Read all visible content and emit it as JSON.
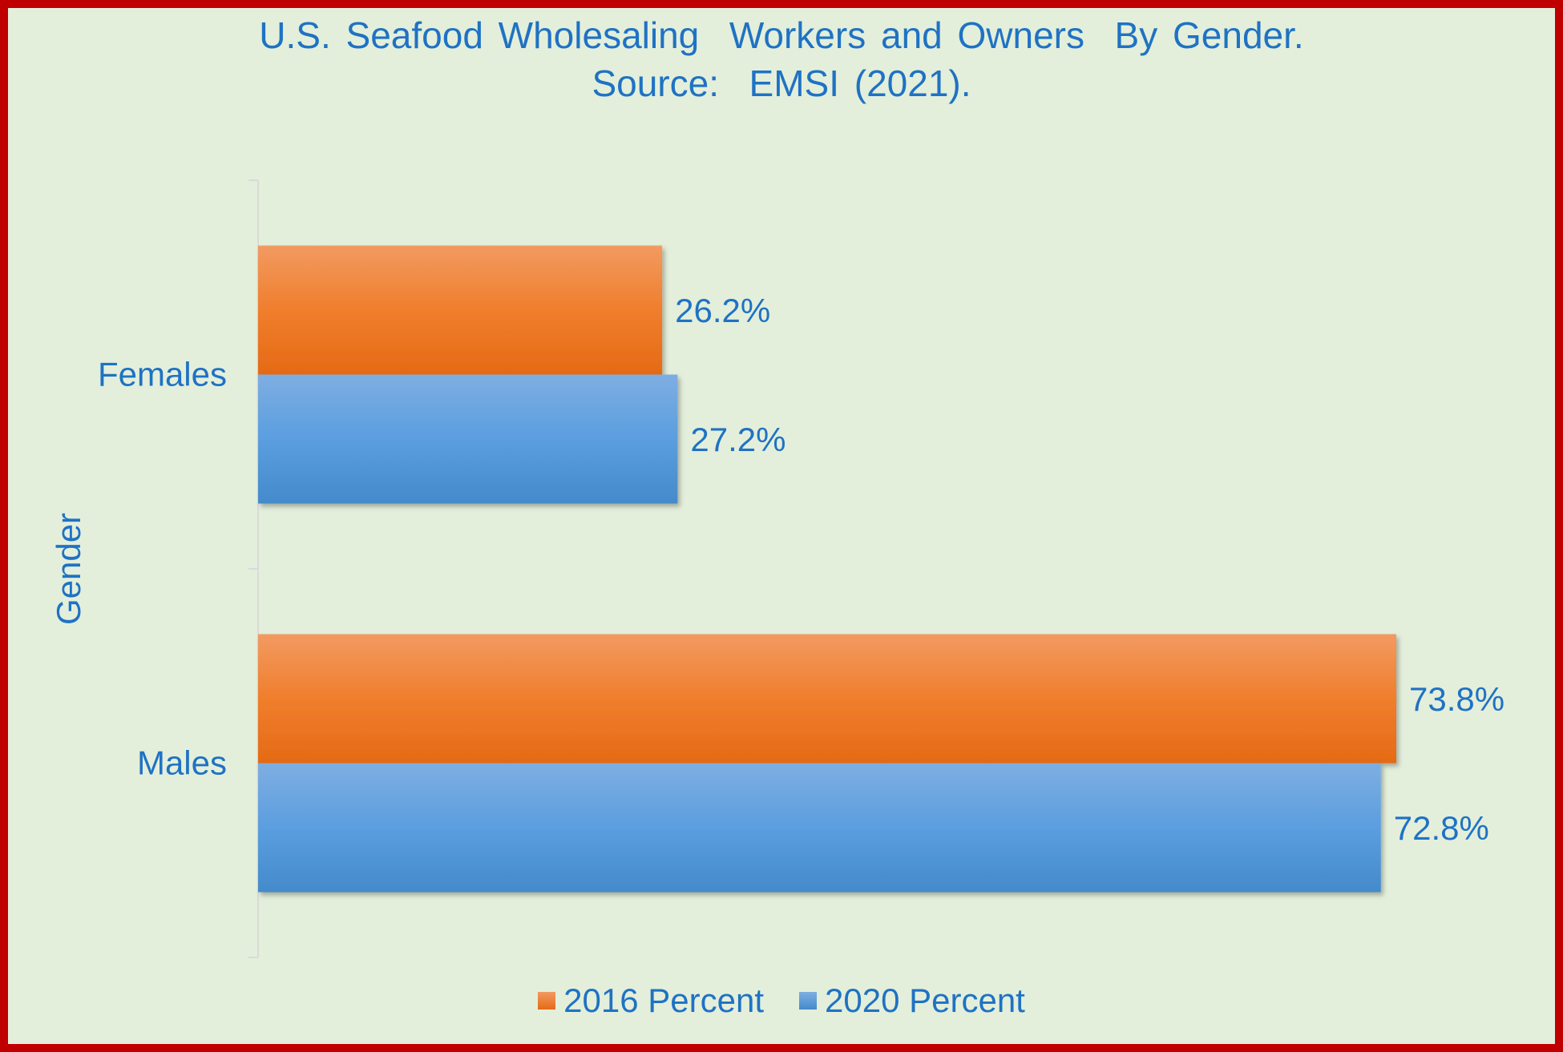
{
  "chart_data": {
    "type": "bar",
    "orientation": "horizontal",
    "title": "U.S. Seafood Wholesaling  Workers and Owners  By Gender.",
    "subtitle": "Source:  EMSI (2021).",
    "xlabel": "",
    "ylabel": "Gender",
    "categories": [
      "Females",
      "Males"
    ],
    "series": [
      {
        "name": "2016 Percent",
        "values": [
          26.2,
          73.8
        ],
        "labels": [
          "26.2%",
          "73.8%"
        ],
        "color": "#ed7d31"
      },
      {
        "name": "2020 Percent",
        "values": [
          27.2,
          72.8
        ],
        "labels": [
          "27.2%",
          "72.8%"
        ],
        "color": "#5b9bd5"
      }
    ],
    "xlim": [
      0,
      80
    ],
    "grid": false,
    "legend_position": "bottom"
  },
  "colors": {
    "background": "#e3efdb",
    "border": "#c00000",
    "text": "#1f72c4",
    "axis": "#d9d9d9"
  }
}
